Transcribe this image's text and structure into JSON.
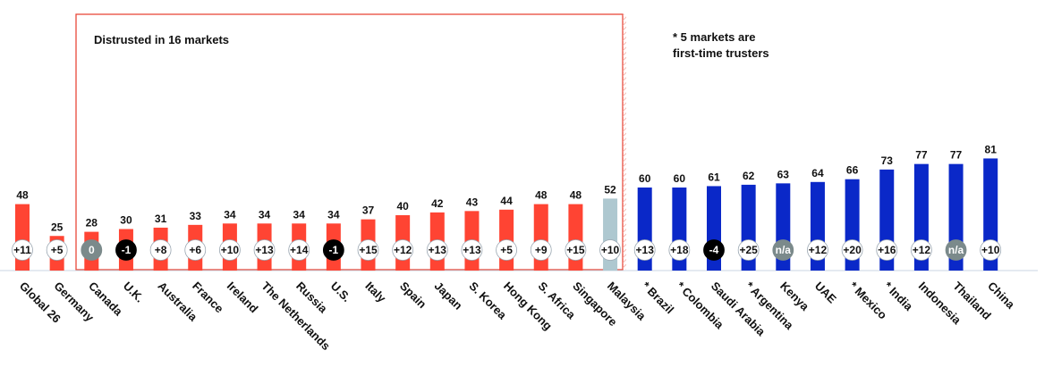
{
  "chart_data": {
    "type": "bar",
    "categories": [
      "Global 26",
      "Germany",
      "Canada",
      "U.K.",
      "Australia",
      "France",
      "Ireland",
      "The Netherlands",
      "Russia",
      "U.S.",
      "Italy",
      "Spain",
      "Japan",
      "S. Korea",
      "Hong Kong",
      "S. Africa",
      "Singapore",
      "Malaysia",
      "* Brazil",
      "* Colombia",
      "Saudi Arabia",
      "* Argentina",
      "Kenya",
      "UAE",
      "* Mexico",
      "* India",
      "Indonesia",
      "Thailand",
      "China"
    ],
    "values": [
      48,
      25,
      28,
      30,
      31,
      33,
      34,
      34,
      34,
      34,
      37,
      40,
      42,
      43,
      44,
      48,
      48,
      52,
      60,
      60,
      61,
      62,
      63,
      64,
      66,
      73,
      77,
      77,
      81
    ],
    "value_labels": [
      "48",
      "25",
      "28",
      "30",
      "31",
      "33",
      "34",
      "34",
      "34",
      "34",
      "37",
      "40",
      "42",
      "43",
      "44",
      "48",
      "48",
      "52",
      "60",
      "60",
      "61",
      "62",
      "63",
      "64",
      "66",
      "73",
      "77",
      "77",
      "81"
    ],
    "changes": [
      "+11",
      "+5",
      "0",
      "-1",
      "+8",
      "+6",
      "+10",
      "+13",
      "+14",
      "-1",
      "+15",
      "+12",
      "+13",
      "+13",
      "+5",
      "+9",
      "+15",
      "+10",
      "+13",
      "+18",
      "-4",
      "+25",
      "n/a",
      "+12",
      "+20",
      "+16",
      "+12",
      "n/a",
      "+10"
    ],
    "groups": [
      "distrusted",
      "distrusted",
      "distrusted",
      "distrusted",
      "distrusted",
      "distrusted",
      "distrusted",
      "distrusted",
      "distrusted",
      "distrusted",
      "distrusted",
      "distrusted",
      "distrusted",
      "distrusted",
      "distrusted",
      "distrusted",
      "distrusted",
      "neutral",
      "trusted",
      "trusted",
      "trusted",
      "trusted",
      "trusted",
      "trusted",
      "trusted",
      "trusted",
      "trusted",
      "trusted",
      "trusted"
    ],
    "ylim": [
      0,
      100
    ],
    "grid": false,
    "colors": {
      "distrusted": "#ff4433",
      "neutral": "#aec8d0",
      "trusted": "#0a28c8",
      "box": "#e8483a",
      "baseline": "#c9d6e3",
      "hatch": "#f3a59b",
      "change_positive_fill": "#ffffff",
      "change_zero_fill": "#7b8a8b",
      "change_negative_fill": "#000000",
      "change_na_fill": "#7b8a8b"
    },
    "annotations": {
      "distrusted_box_title": "Distrusted in 16 markets",
      "trusters_note_line1": "* 5 markets are",
      "trusters_note_line2": "first-time trusters"
    }
  }
}
